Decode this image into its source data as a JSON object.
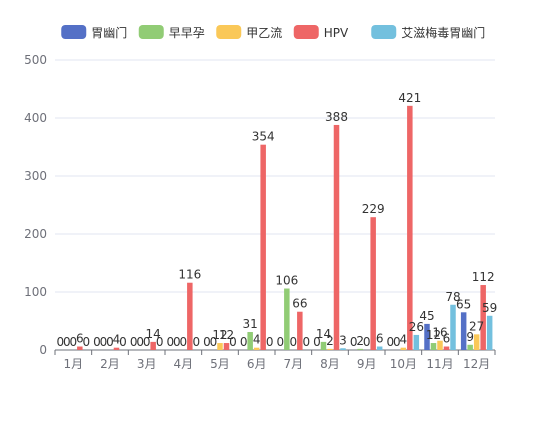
{
  "chart_data": {
    "type": "bar",
    "title": "",
    "xlabel": "",
    "ylabel": "",
    "ylim": [
      0,
      500
    ],
    "yticks": [
      0,
      100,
      200,
      300,
      400,
      500
    ],
    "grid": true,
    "legend_position": "top",
    "categories": [
      "1月",
      "2月",
      "3月",
      "4月",
      "5月",
      "6月",
      "7月",
      "8月",
      "9月",
      "10月",
      "11月",
      "12月"
    ],
    "series": [
      {
        "name": "胃幽门",
        "color": "#5470c6",
        "values": [
          0,
          0,
          0,
          0,
          0,
          0,
          0,
          0,
          0,
          0,
          45,
          65
        ]
      },
      {
        "name": "早早孕",
        "color": "#91cc75",
        "values": [
          0,
          0,
          0,
          0,
          0,
          31,
          106,
          14,
          2,
          0,
          12,
          9
        ]
      },
      {
        "name": "甲乙流",
        "color": "#fac858",
        "values": [
          0,
          0,
          0,
          0,
          12,
          4,
          0,
          2,
          0,
          4,
          16,
          27
        ]
      },
      {
        "name": "HPV",
        "color": "#ee6666",
        "values": [
          6,
          4,
          14,
          116,
          12,
          354,
          66,
          388,
          229,
          421,
          6,
          112
        ]
      },
      {
        "name": "艾滋梅毒胃幽门",
        "color": "#73c0de",
        "values": [
          0,
          0,
          0,
          0,
          0,
          0,
          0,
          3,
          6,
          26,
          78,
          59
        ]
      }
    ]
  }
}
